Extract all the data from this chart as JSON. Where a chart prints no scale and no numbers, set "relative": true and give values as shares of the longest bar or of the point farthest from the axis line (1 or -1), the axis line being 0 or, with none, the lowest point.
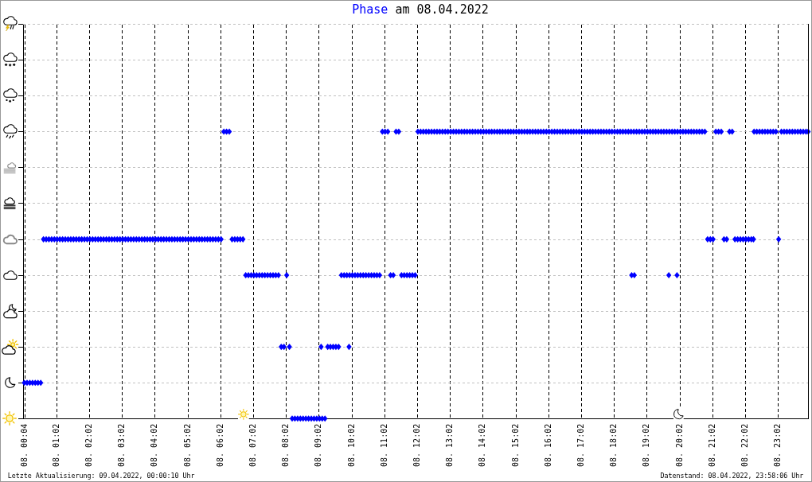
{
  "chart_data": {
    "type": "scatter",
    "title": "Phase am 08.04.2022",
    "annotations": [
      "Letzte Aktualisierung: 09.04.2022, 00:00:10 Uhr",
      "Datenstand: 08.04.2022, 23:58:06 Uhr"
    ],
    "x": [
      "2022-04-08T00:04",
      "2022-04-08T00:09",
      "2022-04-08T00:14",
      "2022-04-08T00:19",
      "2022-04-08T00:24",
      "2022-04-08T00:29",
      "2022-04-08T00:34",
      "2022-04-08T00:39",
      "2022-04-08T00:44",
      "2022-04-08T00:49",
      "2022-04-08T00:54",
      "2022-04-08T00:59",
      "2022-04-08T01:04",
      "2022-04-08T01:09",
      "2022-04-08T01:14",
      "2022-04-08T01:19",
      "2022-04-08T01:24",
      "2022-04-08T01:29",
      "2022-04-08T01:34",
      "2022-04-08T01:39",
      "2022-04-08T01:44",
      "2022-04-08T01:49",
      "2022-04-08T01:54",
      "2022-04-08T01:59",
      "2022-04-08T02:04",
      "2022-04-08T02:09",
      "2022-04-08T02:14",
      "2022-04-08T02:19",
      "2022-04-08T02:24",
      "2022-04-08T02:29",
      "2022-04-08T02:34",
      "2022-04-08T02:39",
      "2022-04-08T02:44",
      "2022-04-08T02:49",
      "2022-04-08T02:54",
      "2022-04-08T02:59",
      "2022-04-08T03:04",
      "2022-04-08T03:09",
      "2022-04-08T03:14",
      "2022-04-08T03:19",
      "2022-04-08T03:24",
      "2022-04-08T03:29",
      "2022-04-08T03:34",
      "2022-04-08T03:39",
      "2022-04-08T03:44",
      "2022-04-08T03:49",
      "2022-04-08T03:54",
      "2022-04-08T03:59",
      "2022-04-08T04:04",
      "2022-04-08T04:09",
      "2022-04-08T04:14",
      "2022-04-08T04:19",
      "2022-04-08T04:24",
      "2022-04-08T04:29",
      "2022-04-08T04:34",
      "2022-04-08T04:39",
      "2022-04-08T04:44",
      "2022-04-08T04:49",
      "2022-04-08T04:54",
      "2022-04-08T04:59",
      "2022-04-08T05:04",
      "2022-04-08T05:09",
      "2022-04-08T05:14",
      "2022-04-08T05:19",
      "2022-04-08T05:24",
      "2022-04-08T05:29",
      "2022-04-08T05:34",
      "2022-04-08T05:39",
      "2022-04-08T05:44",
      "2022-04-08T05:49",
      "2022-04-08T05:54",
      "2022-04-08T05:59",
      "2022-04-08T06:04",
      "2022-04-08T06:09",
      "2022-04-08T06:14",
      "2022-04-08T06:19",
      "2022-04-08T06:24",
      "2022-04-08T06:29",
      "2022-04-08T06:34",
      "2022-04-08T06:39",
      "2022-04-08T06:44",
      "2022-04-08T06:49",
      "2022-04-08T06:54",
      "2022-04-08T06:59",
      "2022-04-08T07:04",
      "2022-04-08T07:09",
      "2022-04-08T07:14",
      "2022-04-08T07:19",
      "2022-04-08T07:24",
      "2022-04-08T07:29",
      "2022-04-08T07:34",
      "2022-04-08T07:39",
      "2022-04-08T07:44",
      "2022-04-08T07:49",
      "2022-04-08T07:54",
      "2022-04-08T07:59",
      "2022-04-08T08:04",
      "2022-04-08T08:09",
      "2022-04-08T08:14",
      "2022-04-08T08:19",
      "2022-04-08T08:24",
      "2022-04-08T08:29",
      "2022-04-08T08:34",
      "2022-04-08T08:39",
      "2022-04-08T08:44",
      "2022-04-08T08:49",
      "2022-04-08T08:54",
      "2022-04-08T08:59",
      "2022-04-08T09:04",
      "2022-04-08T09:07",
      "2022-04-08T09:09",
      "2022-04-08T09:14",
      "2022-04-08T09:19",
      "2022-04-08T09:24",
      "2022-04-08T09:29",
      "2022-04-08T09:34",
      "2022-04-08T09:39",
      "2022-04-08T09:44",
      "2022-04-08T09:49",
      "2022-04-08T09:54",
      "2022-04-08T09:58",
      "2022-04-08T09:59",
      "2022-04-08T10:04",
      "2022-04-08T10:09",
      "2022-04-08T10:14",
      "2022-04-08T10:19",
      "2022-04-08T10:24",
      "2022-04-08T10:29",
      "2022-04-08T10:34",
      "2022-04-08T10:39",
      "2022-04-08T10:44",
      "2022-04-08T10:49",
      "2022-04-08T10:54",
      "2022-04-08T10:59",
      "2022-04-08T11:04",
      "2022-04-08T11:09",
      "2022-04-08T11:14",
      "2022-04-08T11:19",
      "2022-04-08T11:24",
      "2022-04-08T11:29",
      "2022-04-08T11:34",
      "2022-04-08T11:39",
      "2022-04-08T11:44",
      "2022-04-08T11:49",
      "2022-04-08T11:54",
      "2022-04-08T11:59",
      "2022-04-08T12:04",
      "2022-04-08T12:09",
      "2022-04-08T12:14",
      "2022-04-08T12:19",
      "2022-04-08T12:24",
      "2022-04-08T12:29",
      "2022-04-08T12:34",
      "2022-04-08T12:39",
      "2022-04-08T12:44",
      "2022-04-08T12:49",
      "2022-04-08T12:54",
      "2022-04-08T12:59",
      "2022-04-08T13:04",
      "2022-04-08T13:09",
      "2022-04-08T13:14",
      "2022-04-08T13:19",
      "2022-04-08T13:24",
      "2022-04-08T13:29",
      "2022-04-08T13:34",
      "2022-04-08T13:39",
      "2022-04-08T13:44",
      "2022-04-08T13:49",
      "2022-04-08T13:54",
      "2022-04-08T13:59",
      "2022-04-08T14:04",
      "2022-04-08T14:09",
      "2022-04-08T14:14",
      "2022-04-08T14:19",
      "2022-04-08T14:24",
      "2022-04-08T14:29",
      "2022-04-08T14:34",
      "2022-04-08T14:39",
      "2022-04-08T14:44",
      "2022-04-08T14:49",
      "2022-04-08T14:54",
      "2022-04-08T14:59",
      "2022-04-08T15:04",
      "2022-04-08T15:09",
      "2022-04-08T15:14",
      "2022-04-08T15:19",
      "2022-04-08T15:24",
      "2022-04-08T15:29",
      "2022-04-08T15:34",
      "2022-04-08T15:39",
      "2022-04-08T15:44",
      "2022-04-08T15:49",
      "2022-04-08T15:54",
      "2022-04-08T15:59",
      "2022-04-08T16:04",
      "2022-04-08T16:09",
      "2022-04-08T16:14",
      "2022-04-08T16:19",
      "2022-04-08T16:24",
      "2022-04-08T16:29",
      "2022-04-08T16:34",
      "2022-04-08T16:39",
      "2022-04-08T16:44",
      "2022-04-08T16:49",
      "2022-04-08T16:54",
      "2022-04-08T16:59",
      "2022-04-08T17:04",
      "2022-04-08T17:09",
      "2022-04-08T17:14",
      "2022-04-08T17:19",
      "2022-04-08T17:24",
      "2022-04-08T17:29",
      "2022-04-08T17:34",
      "2022-04-08T17:39",
      "2022-04-08T17:44",
      "2022-04-08T17:49",
      "2022-04-08T17:54",
      "2022-04-08T17:59",
      "2022-04-08T18:04",
      "2022-04-08T18:09",
      "2022-04-08T18:14",
      "2022-04-08T18:19",
      "2022-04-08T18:24",
      "2022-04-08T18:29",
      "2022-04-08T18:34",
      "2022-04-08T18:35",
      "2022-04-08T18:39",
      "2022-04-08T18:40",
      "2022-04-08T18:44",
      "2022-04-08T18:49",
      "2022-04-08T18:54",
      "2022-04-08T18:59",
      "2022-04-08T19:04",
      "2022-04-08T19:09",
      "2022-04-08T19:14",
      "2022-04-08T19:19",
      "2022-04-08T19:24",
      "2022-04-08T19:29",
      "2022-04-08T19:34",
      "2022-04-08T19:39",
      "2022-04-08T19:43",
      "2022-04-08T19:44",
      "2022-04-08T19:49",
      "2022-04-08T19:54",
      "2022-04-08T19:58",
      "2022-04-08T19:59",
      "2022-04-08T20:04",
      "2022-04-08T20:09",
      "2022-04-08T20:14",
      "2022-04-08T20:19",
      "2022-04-08T20:24",
      "2022-04-08T20:29",
      "2022-04-08T20:34",
      "2022-04-08T20:39",
      "2022-04-08T20:44",
      "2022-04-08T20:49",
      "2022-04-08T20:54",
      "2022-04-08T20:59",
      "2022-04-08T21:04",
      "2022-04-08T21:09",
      "2022-04-08T21:14",
      "2022-04-08T21:19",
      "2022-04-08T21:24",
      "2022-04-08T21:29",
      "2022-04-08T21:34",
      "2022-04-08T21:39",
      "2022-04-08T21:44",
      "2022-04-08T21:49",
      "2022-04-08T21:54",
      "2022-04-08T21:59",
      "2022-04-08T22:04",
      "2022-04-08T22:09",
      "2022-04-08T22:14",
      "2022-04-08T22:18",
      "2022-04-08T22:19",
      "2022-04-08T22:24",
      "2022-04-08T22:29",
      "2022-04-08T22:34",
      "2022-04-08T22:39",
      "2022-04-08T22:44",
      "2022-04-08T22:49",
      "2022-04-08T22:54",
      "2022-04-08T22:59",
      "2022-04-08T23:04",
      "2022-04-08T23:09",
      "2022-04-08T23:14",
      "2022-04-08T23:19",
      "2022-04-08T23:24",
      "2022-04-08T23:29",
      "2022-04-08T23:34",
      "2022-04-08T23:39",
      "2022-04-08T23:44",
      "2022-04-08T23:49",
      "2022-04-08T23:54",
      "2022-04-08T23:58"
    ],
    "series": [
      {
        "color": "#0000ff",
        "values": [
          0.125,
          0.125,
          0.125,
          0.125,
          0.125,
          0.125,
          0.125,
          0.625,
          0.625,
          0.625,
          0.625,
          0.625,
          0.625,
          0.625,
          0.625,
          0.625,
          0.625,
          0.625,
          0.625,
          0.625,
          0.625,
          0.625,
          0.625,
          0.625,
          0.625,
          0.625,
          0.625,
          0.625,
          0.625,
          0.625,
          0.625,
          0.625,
          0.625,
          0.625,
          0.625,
          0.625,
          0.625,
          0.625,
          0.625,
          0.625,
          0.625,
          0.625,
          0.625,
          0.625,
          0.625,
          0.625,
          0.625,
          0.625,
          0.625,
          0.625,
          0.625,
          0.625,
          0.625,
          0.625,
          0.625,
          0.625,
          0.625,
          0.625,
          0.625,
          0.625,
          0.625,
          0.625,
          0.625,
          0.625,
          0.625,
          0.625,
          0.625,
          0.625,
          0.625,
          0.625,
          0.625,
          0.625,
          0.625,
          1,
          1,
          1,
          0.625,
          0.625,
          0.625,
          0.625,
          0.625,
          0.5,
          0.5,
          0.5,
          0.5,
          0.5,
          0.5,
          0.5,
          0.5,
          0.5,
          0.5,
          0.5,
          0.5,
          0.5,
          0.25,
          0.25,
          0.5,
          0.25,
          0,
          0,
          0,
          0,
          0,
          0,
          0,
          0,
          0,
          0,
          0,
          0.25,
          0,
          0,
          0.25,
          0.25,
          0.25,
          0.25,
          0.25,
          0.5,
          0.5,
          0.5,
          0.25,
          0.5,
          0.5,
          0.5,
          0.5,
          0.5,
          0.5,
          0.5,
          0.5,
          0.5,
          0.5,
          0.5,
          0.5,
          1,
          1,
          1,
          0.5,
          0.5,
          1,
          1,
          0.5,
          0.5,
          0.5,
          0.5,
          0.5,
          0.5,
          1,
          1,
          1,
          1,
          1,
          1,
          1,
          1,
          1,
          1,
          1,
          1,
          1,
          1,
          1,
          1,
          1,
          1,
          1,
          1,
          1,
          1,
          1,
          1,
          1,
          1,
          1,
          1,
          1,
          1,
          1,
          1,
          1,
          1,
          1,
          1,
          1,
          1,
          1,
          1,
          1,
          1,
          1,
          1,
          1,
          1,
          1,
          1,
          1,
          1,
          1,
          1,
          1,
          1,
          1,
          1,
          1,
          1,
          1,
          1,
          1,
          1,
          1,
          1,
          1,
          1,
          1,
          1,
          1,
          1,
          1,
          1,
          1,
          1,
          1,
          1,
          1,
          1,
          1,
          0.5,
          1,
          0.5,
          1,
          1,
          1,
          1,
          1,
          1,
          1,
          1,
          1,
          1,
          1,
          1,
          0.5,
          1,
          1,
          1,
          0.5,
          1,
          1,
          1,
          1,
          1,
          1,
          1,
          1,
          1,
          1,
          1,
          0.625,
          0.625,
          0.625,
          1,
          1,
          1,
          0.625,
          0.625,
          1,
          1,
          0.625,
          0.625,
          0.625,
          0.625,
          0.625,
          0.625,
          0.625,
          0.625,
          1,
          1,
          1,
          1,
          1,
          1,
          1,
          1,
          1,
          0.625,
          1,
          1,
          1,
          1,
          1,
          1,
          1,
          1,
          1,
          1,
          1
        ]
      }
    ],
    "relative": true,
    "xlim": [
      "2022-04-08T00:01",
      "2022-04-08T23:58"
    ],
    "xticks": [
      {
        "value": "2022-04-08T00:04",
        "label": "08. 00:04"
      },
      {
        "value": "2022-04-08T01:02",
        "label": "08. 01:02"
      },
      {
        "value": "2022-04-08T02:02",
        "label": "08. 02:02"
      },
      {
        "value": "2022-04-08T03:02",
        "label": "08. 03:02"
      },
      {
        "value": "2022-04-08T04:02",
        "label": "08. 04:02"
      },
      {
        "value": "2022-04-08T05:02",
        "label": "08. 05:02"
      },
      {
        "value": "2022-04-08T06:02",
        "label": "08. 06:02"
      },
      {
        "value": "2022-04-08T07:02",
        "label": "08. 07:02"
      },
      {
        "value": "2022-04-08T08:02",
        "label": "08. 08:02"
      },
      {
        "value": "2022-04-08T09:02",
        "label": "08. 09:02"
      },
      {
        "value": "2022-04-08T10:02",
        "label": "08. 10:02"
      },
      {
        "value": "2022-04-08T11:02",
        "label": "08. 11:02"
      },
      {
        "value": "2022-04-08T12:02",
        "label": "08. 12:02"
      },
      {
        "value": "2022-04-08T13:02",
        "label": "08. 13:02"
      },
      {
        "value": "2022-04-08T14:02",
        "label": "08. 14:02"
      },
      {
        "value": "2022-04-08T15:02",
        "label": "08. 15:02"
      },
      {
        "value": "2022-04-08T16:02",
        "label": "08. 16:02"
      },
      {
        "value": "2022-04-08T17:02",
        "label": "08. 17:02"
      },
      {
        "value": "2022-04-08T18:02",
        "label": "08. 18:02"
      },
      {
        "value": "2022-04-08T19:02",
        "label": "08. 19:02"
      },
      {
        "value": "2022-04-08T20:02",
        "label": "08. 20:02"
      },
      {
        "value": "2022-04-08T21:02",
        "label": "08. 21:02"
      },
      {
        "value": "2022-04-08T22:02",
        "label": "08. 22:02"
      },
      {
        "value": "2022-04-08T23:02",
        "label": "08. 23:02"
      }
    ],
    "grid": true,
    "marker": "diamond"
  }
}
